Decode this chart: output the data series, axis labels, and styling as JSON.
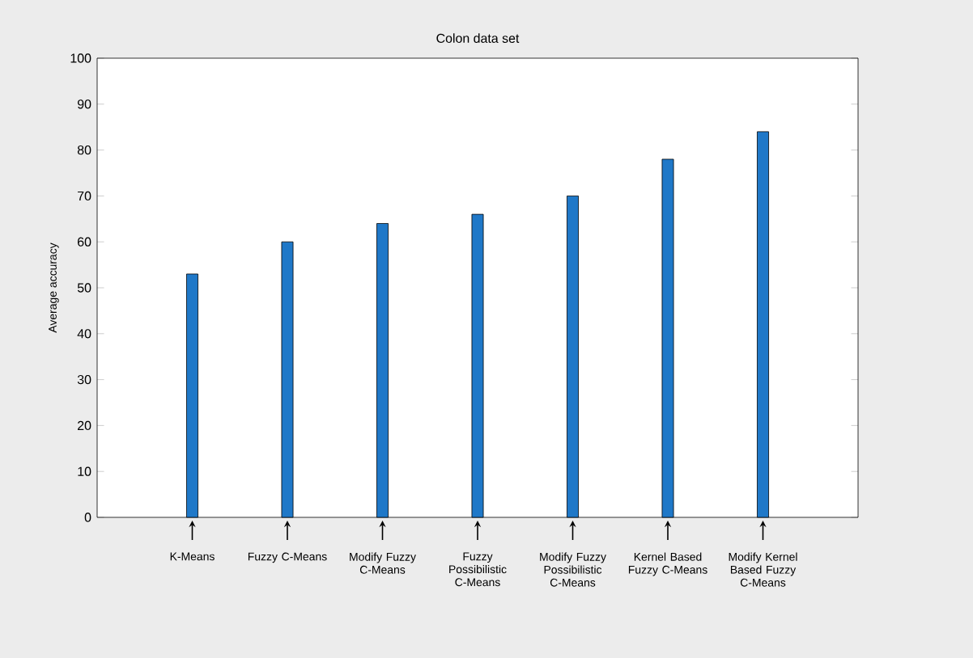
{
  "chart_data": {
    "type": "bar",
    "title": "Colon data set",
    "ylabel": "Average accuracy",
    "categories": [
      "K-Means",
      "Fuzzy C-Means",
      "Modify Fuzzy C-Means",
      "Fuzzy Possibilistic C-Means",
      "Modify Fuzzy Possibilistic C-Means",
      "Kernel Based Fuzzy C-Means",
      "Modify Kernel Based Fuzzy C-Means"
    ],
    "values": [
      53,
      60,
      64,
      66,
      70,
      78,
      84
    ],
    "color": "#1f78c8",
    "ylim": [
      0,
      100
    ],
    "yticks": [
      0,
      10,
      20,
      30,
      40,
      50,
      60,
      70,
      80,
      90,
      100
    ],
    "grid": false
  }
}
